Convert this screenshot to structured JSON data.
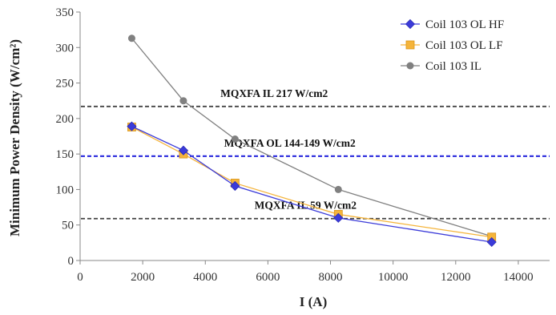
{
  "chart_data": {
    "type": "line",
    "title": "",
    "xlabel": "I (A)",
    "ylabel": "Minimum Power Density (W/cm²)",
    "xlim": [
      0,
      15000
    ],
    "ylim": [
      0,
      350
    ],
    "x_ticks": [
      0,
      2000,
      4000,
      6000,
      8000,
      10000,
      12000,
      14000
    ],
    "y_ticks": [
      0,
      50,
      100,
      150,
      200,
      250,
      300,
      350
    ],
    "x_tick_labels": [
      "0",
      "2000",
      "4000",
      "6000",
      "8000",
      "10000",
      "12000",
      "14000"
    ],
    "y_tick_labels": [
      "0",
      "50",
      "100",
      "150",
      "200",
      "250",
      "300",
      "350"
    ],
    "grid": false,
    "legend_position": "top-right",
    "series": [
      {
        "name": "Coil 103 OL HF",
        "marker": "diamond",
        "color": "#3b3bd9",
        "x": [
          1650,
          3300,
          4950,
          8250,
          13150
        ],
        "y": [
          189,
          155,
          105,
          60,
          26
        ]
      },
      {
        "name": "Coil 103 OL LF",
        "marker": "square",
        "color": "#f5b43a",
        "x": [
          1650,
          3300,
          4950,
          8250,
          13150
        ],
        "y": [
          188,
          150,
          109,
          65,
          33
        ]
      },
      {
        "name": "Coil 103 IL",
        "marker": "circle",
        "color": "#808080",
        "x": [
          1650,
          3300,
          4950,
          8250,
          13150
        ],
        "y": [
          313,
          225,
          171,
          100,
          34
        ]
      }
    ],
    "reference_lines": [
      {
        "label": "MQXFA IL  217 W/cm2",
        "y": 217,
        "color": "#444444"
      },
      {
        "label": "MQXFA OL  144-149 W/cm2",
        "y": 147,
        "color": "#2b2bdd"
      },
      {
        "label": "MQXFA IL  59 W/cm2",
        "y": 59,
        "color": "#444444"
      }
    ]
  }
}
